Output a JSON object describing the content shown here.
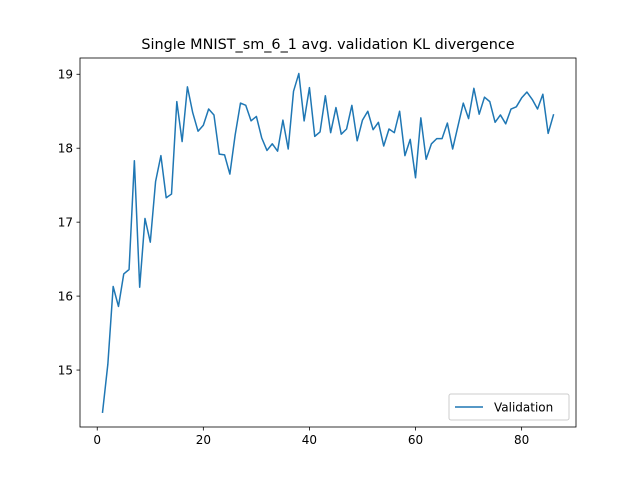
{
  "chart_data": {
    "type": "line",
    "title": "Single MNIST_sm_6_1 avg. validation KL divergence",
    "xlabel": "",
    "ylabel": "",
    "xlim": [
      -3.25,
      90.25
    ],
    "ylim": [
      14.23,
      19.22
    ],
    "xticks": [
      0,
      20,
      40,
      60,
      80
    ],
    "yticks": [
      15,
      16,
      17,
      18,
      19
    ],
    "xtick_labels": [
      "0",
      "20",
      "40",
      "60",
      "80"
    ],
    "ytick_labels": [
      "15",
      "16",
      "17",
      "18",
      "19"
    ],
    "grid": false,
    "legend": {
      "position": "lower-right",
      "entries": [
        "Validation"
      ]
    },
    "series": [
      {
        "name": "Validation",
        "color": "#1f77b4",
        "x": [
          1,
          2,
          3,
          4,
          5,
          6,
          7,
          8,
          9,
          10,
          11,
          12,
          13,
          14,
          15,
          16,
          17,
          18,
          19,
          20,
          21,
          22,
          23,
          24,
          25,
          26,
          27,
          28,
          29,
          30,
          31,
          32,
          33,
          34,
          35,
          36,
          37,
          38,
          39,
          40,
          41,
          42,
          43,
          44,
          45,
          46,
          47,
          48,
          49,
          50,
          51,
          52,
          53,
          54,
          55,
          56,
          57,
          58,
          59,
          60,
          61,
          62,
          63,
          64,
          65,
          66,
          67,
          68,
          69,
          70,
          71,
          72,
          73,
          74,
          75,
          76,
          77,
          78,
          79,
          80,
          81,
          82,
          83,
          84,
          85,
          86
        ],
        "values": [
          14.43,
          15.08,
          16.13,
          15.86,
          16.3,
          16.36,
          17.83,
          16.12,
          17.05,
          16.73,
          17.55,
          17.9,
          17.33,
          17.38,
          18.63,
          18.09,
          18.83,
          18.48,
          18.23,
          18.31,
          18.53,
          18.45,
          17.92,
          17.91,
          17.65,
          18.18,
          18.61,
          18.58,
          18.37,
          18.43,
          18.14,
          17.97,
          18.06,
          17.96,
          18.38,
          17.99,
          18.77,
          19.01,
          18.37,
          18.82,
          18.16,
          18.22,
          18.71,
          18.21,
          18.55,
          18.19,
          18.26,
          18.58,
          18.1,
          18.38,
          18.5,
          18.25,
          18.35,
          18.03,
          18.26,
          18.21,
          18.5,
          17.9,
          18.12,
          17.6,
          18.41,
          17.85,
          18.06,
          18.13,
          18.13,
          18.34,
          17.99,
          18.3,
          18.61,
          18.4,
          18.81,
          18.46,
          18.69,
          18.63,
          18.35,
          18.45,
          18.33,
          18.53,
          18.56,
          18.68,
          18.76,
          18.66,
          18.53,
          18.73,
          18.2,
          18.45
        ]
      }
    ]
  }
}
